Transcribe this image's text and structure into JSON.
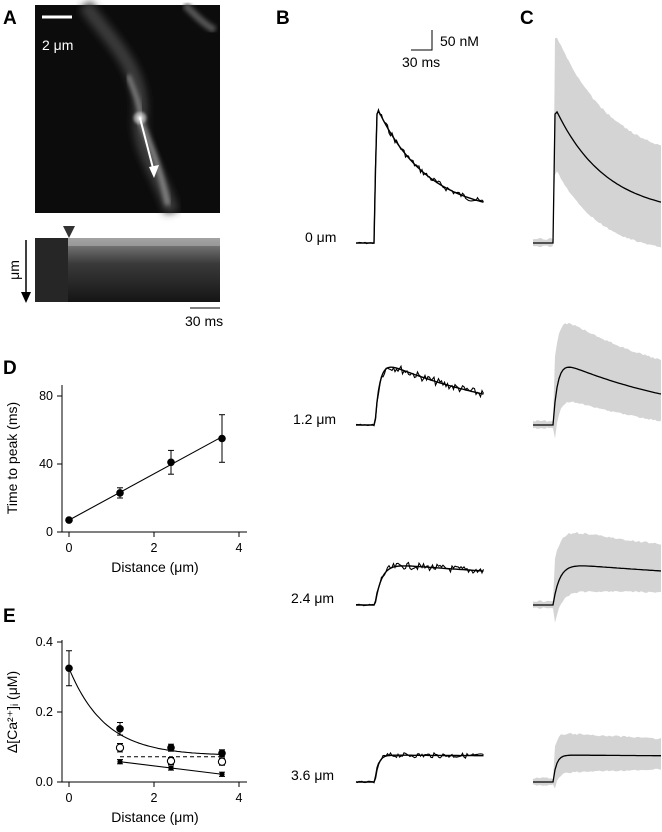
{
  "panels": {
    "a": "A",
    "b": "B",
    "c": "C",
    "d": "D",
    "e": "E"
  },
  "panel_a": {
    "image_scale_label": "2 μm",
    "linescan_axis_label": "μm",
    "linescan_time_label": "30 ms"
  },
  "panel_b": {
    "scalebar_y": "50 nM",
    "scalebar_x": "30 ms",
    "traces": [
      {
        "distance": "0 μm"
      },
      {
        "distance": "1.2 μm"
      },
      {
        "distance": "2.4 μm"
      },
      {
        "distance": "3.6 μm"
      }
    ]
  },
  "chart_data": [
    {
      "panel": "D",
      "type": "scatter",
      "xlabel": "Distance (μm)",
      "ylabel": "Time to peak (ms)",
      "xlim": [
        0,
        4
      ],
      "ylim": [
        0,
        80
      ],
      "xticks": [
        "0",
        "2",
        "4"
      ],
      "yticks": [
        "0",
        "40",
        "80"
      ],
      "points": [
        {
          "x": 0,
          "y": 7,
          "err": 0
        },
        {
          "x": 1.2,
          "y": 23,
          "err": 3
        },
        {
          "x": 2.4,
          "y": 41,
          "err": 7
        },
        {
          "x": 3.6,
          "y": 55,
          "err": 14
        }
      ],
      "fit": {
        "type": "linear",
        "x": [
          0,
          3.6
        ],
        "y": [
          7,
          56
        ]
      }
    },
    {
      "panel": "E",
      "type": "scatter",
      "xlabel": "Distance (μm)",
      "ylabel": "Δ[Ca²⁺]ᵢ (μM)",
      "xlim": [
        0,
        4
      ],
      "ylim": [
        0,
        0.4
      ],
      "xticks": [
        "0",
        "2",
        "4"
      ],
      "yticks": [
        "0.0",
        "0.2",
        "0.4"
      ],
      "series": [
        {
          "marker": "filled-circle",
          "x": [
            0,
            1.2,
            2.4,
            3.6
          ],
          "y": [
            0.325,
            0.152,
            0.098,
            0.082
          ],
          "err": [
            0.05,
            0.018,
            0.01,
            0.01
          ]
        },
        {
          "marker": "open-circle",
          "x": [
            1.2,
            2.4,
            3.6
          ],
          "y": [
            0.098,
            0.06,
            0.058
          ],
          "err": [
            0.012,
            0.01,
            0.01
          ]
        },
        {
          "marker": "small-filled-circle",
          "x": [
            1.2,
            2.4,
            3.6
          ],
          "y": [
            0.058,
            0.04,
            0.022
          ],
          "err": [
            0.006,
            0.006,
            0.006
          ]
        }
      ]
    }
  ]
}
